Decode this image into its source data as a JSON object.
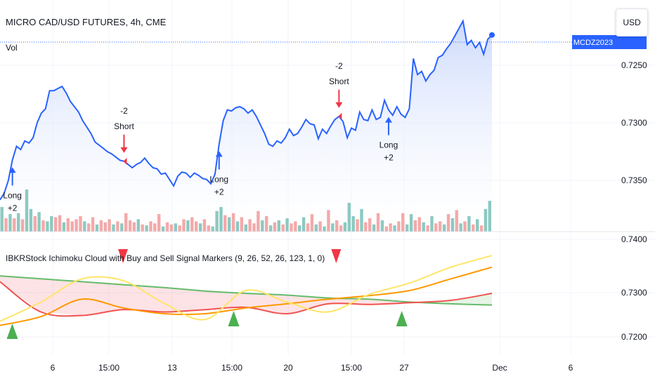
{
  "header": {
    "symbol_title": "MICRO CAD/USD FUTURES, 4h, CME",
    "volume_label": "Vol",
    "currency_button": "USD",
    "price_tag": "MCDZ2023"
  },
  "indicator": {
    "title": "IBKRStock Ichimoku Cloud with Buy and Sell Signal Markers (9, 26, 52, 26, 123, 1, 0)"
  },
  "colors": {
    "price_line": "#2962ff",
    "area_top": "#c7d6fb",
    "vol_up": "#8cc9c1",
    "vol_down": "#f4a9a9",
    "long_arrow": "#2962ff",
    "short_arrow": "#f23645",
    "ichi_green": "#4caf50",
    "ichi_red": "#f23645",
    "ichi_orange": "#ff9800",
    "ichi_yellow": "#ffeb3b",
    "grid": "#f0f3fa"
  },
  "chart_data": [
    {
      "type": "line",
      "title": "MICRO CAD/USD FUTURES, 4h, CME",
      "ylim": [
        0.7215,
        0.7392
      ],
      "y_ticks": [
        "0.7250",
        "0.7300",
        "0.7350"
      ],
      "x_ticks": [
        "6",
        "15:00",
        "13",
        "15:00",
        "20",
        "15:00",
        "27",
        "Dec",
        "6"
      ],
      "series": [
        {
          "values": [
            0.7225,
            0.7231,
            0.7243,
            0.7262,
            0.7275,
            0.7272,
            0.728,
            0.7278,
            0.7283,
            0.7297,
            0.7306,
            0.731,
            0.7327,
            0.7327,
            0.7329,
            0.7331,
            0.7325,
            0.7317,
            0.7312,
            0.7307,
            0.7299,
            0.7293,
            0.7287,
            0.7279,
            0.7276,
            0.7273,
            0.727,
            0.7268,
            0.7265,
            0.7262,
            0.7261,
            0.7258,
            0.7255,
            0.7258,
            0.726,
            0.7264,
            0.7259,
            0.7255,
            0.7254,
            0.7249,
            0.725,
            0.7244,
            0.7238,
            0.7247,
            0.7251,
            0.725,
            0.7246,
            0.725,
            0.7248,
            0.7245,
            0.7244,
            0.724,
            0.7249,
            0.7277,
            0.7299,
            0.7309,
            0.7308,
            0.7311,
            0.7312,
            0.731,
            0.7306,
            0.7309,
            0.7303,
            0.7295,
            0.7287,
            0.7277,
            0.7275,
            0.728,
            0.7278,
            0.7283,
            0.7291,
            0.7285,
            0.7287,
            0.7293,
            0.73,
            0.7296,
            0.7295,
            0.7282,
            0.7291,
            0.7287,
            0.7294,
            0.73,
            0.7303,
            0.7298,
            0.7283,
            0.7292,
            0.729,
            0.7307,
            0.73,
            0.7299,
            0.7309,
            0.73,
            0.7302,
            0.7318,
            0.7309,
            0.7304,
            0.7312,
            0.7305,
            0.7302,
            0.731,
            0.7357,
            0.7342,
            0.7345,
            0.7336,
            0.7342,
            0.7346,
            0.7358,
            0.736,
            0.7366,
            0.7371,
            0.7378,
            0.7385,
            0.7392,
            0.737,
            0.7374,
            0.7367,
            0.7372,
            0.7361,
            0.7375,
            0.7379
          ]
        }
      ],
      "volume": [
        {
          "v": 48,
          "up": true
        },
        {
          "v": 26,
          "up": false
        },
        {
          "v": 34,
          "up": true
        },
        {
          "v": 26,
          "up": false
        },
        {
          "v": 36,
          "up": true
        },
        {
          "v": 24,
          "up": false
        },
        {
          "v": 82,
          "up": true
        },
        {
          "v": 44,
          "up": true
        },
        {
          "v": 30,
          "up": false
        },
        {
          "v": 38,
          "up": true
        },
        {
          "v": 22,
          "up": false
        },
        {
          "v": 20,
          "up": true
        },
        {
          "v": 30,
          "up": true
        },
        {
          "v": 28,
          "up": false
        },
        {
          "v": 32,
          "up": false
        },
        {
          "v": 18,
          "up": true
        },
        {
          "v": 26,
          "up": false
        },
        {
          "v": 20,
          "up": false
        },
        {
          "v": 24,
          "up": false
        },
        {
          "v": 30,
          "up": false
        },
        {
          "v": 20,
          "up": true
        },
        {
          "v": 16,
          "up": false
        },
        {
          "v": 28,
          "up": false
        },
        {
          "v": 14,
          "up": true
        },
        {
          "v": 22,
          "up": false
        },
        {
          "v": 18,
          "up": false
        },
        {
          "v": 24,
          "up": false
        },
        {
          "v": 14,
          "up": true
        },
        {
          "v": 20,
          "up": false
        },
        {
          "v": 16,
          "up": true
        },
        {
          "v": 36,
          "up": false
        },
        {
          "v": 22,
          "up": false
        },
        {
          "v": 18,
          "up": false
        },
        {
          "v": 24,
          "up": true
        },
        {
          "v": 14,
          "up": false
        },
        {
          "v": 12,
          "up": true
        },
        {
          "v": 20,
          "up": false
        },
        {
          "v": 16,
          "up": false
        },
        {
          "v": 34,
          "up": false
        },
        {
          "v": 10,
          "up": true
        },
        {
          "v": 18,
          "up": false
        },
        {
          "v": 14,
          "up": false
        },
        {
          "v": 16,
          "up": true
        },
        {
          "v": 12,
          "up": false
        },
        {
          "v": 24,
          "up": false
        },
        {
          "v": 22,
          "up": true
        },
        {
          "v": 28,
          "up": false
        },
        {
          "v": 20,
          "up": false
        },
        {
          "v": 16,
          "up": true
        },
        {
          "v": 24,
          "up": false
        },
        {
          "v": 12,
          "up": false
        },
        {
          "v": 10,
          "up": true
        },
        {
          "v": 40,
          "up": true
        },
        {
          "v": 48,
          "up": true
        },
        {
          "v": 32,
          "up": false
        },
        {
          "v": 28,
          "up": true
        },
        {
          "v": 36,
          "up": false
        },
        {
          "v": 20,
          "up": true
        },
        {
          "v": 28,
          "up": false
        },
        {
          "v": 14,
          "up": true
        },
        {
          "v": 24,
          "up": false
        },
        {
          "v": 16,
          "up": false
        },
        {
          "v": 40,
          "up": false
        },
        {
          "v": 22,
          "up": true
        },
        {
          "v": 30,
          "up": false
        },
        {
          "v": 12,
          "up": true
        },
        {
          "v": 18,
          "up": false
        },
        {
          "v": 22,
          "up": true
        },
        {
          "v": 14,
          "up": false
        },
        {
          "v": 26,
          "up": true
        },
        {
          "v": 16,
          "up": false
        },
        {
          "v": 20,
          "up": false
        },
        {
          "v": 12,
          "up": true
        },
        {
          "v": 28,
          "up": true
        },
        {
          "v": 16,
          "up": false
        },
        {
          "v": 34,
          "up": false
        },
        {
          "v": 14,
          "up": true
        },
        {
          "v": 20,
          "up": false
        },
        {
          "v": 10,
          "up": true
        },
        {
          "v": 42,
          "up": false
        },
        {
          "v": 16,
          "up": true
        },
        {
          "v": 22,
          "up": false
        },
        {
          "v": 12,
          "up": false
        },
        {
          "v": 18,
          "up": true
        },
        {
          "v": 56,
          "up": true
        },
        {
          "v": 30,
          "up": true
        },
        {
          "v": 24,
          "up": false
        },
        {
          "v": 44,
          "up": true
        },
        {
          "v": 18,
          "up": false
        },
        {
          "v": 26,
          "up": false
        },
        {
          "v": 14,
          "up": true
        },
        {
          "v": 36,
          "up": false
        },
        {
          "v": 22,
          "up": true
        },
        {
          "v": 10,
          "up": false
        },
        {
          "v": 16,
          "up": false
        },
        {
          "v": 12,
          "up": true
        },
        {
          "v": 20,
          "up": false
        },
        {
          "v": 36,
          "up": false
        },
        {
          "v": 14,
          "up": true
        },
        {
          "v": 34,
          "up": true
        },
        {
          "v": 22,
          "up": false
        },
        {
          "v": 28,
          "up": false
        },
        {
          "v": 18,
          "up": true
        },
        {
          "v": 12,
          "up": false
        },
        {
          "v": 30,
          "up": true
        },
        {
          "v": 16,
          "up": false
        },
        {
          "v": 20,
          "up": false
        },
        {
          "v": 14,
          "up": true
        },
        {
          "v": 34,
          "up": false
        },
        {
          "v": 26,
          "up": true
        },
        {
          "v": 42,
          "up": false
        },
        {
          "v": 16,
          "up": true
        },
        {
          "v": 20,
          "up": false
        },
        {
          "v": 30,
          "up": true
        },
        {
          "v": 14,
          "up": false
        },
        {
          "v": 24,
          "up": true
        },
        {
          "v": 12,
          "up": false
        },
        {
          "v": 44,
          "up": true
        },
        {
          "v": 60,
          "up": true
        }
      ],
      "signals": [
        {
          "index": 3,
          "kind": "long",
          "lines": [
            "Long",
            "+2"
          ]
        },
        {
          "index": 30,
          "kind": "short",
          "lines": [
            "-2",
            "Short"
          ]
        },
        {
          "index": 53,
          "kind": "long",
          "lines": [
            "Long",
            "+2"
          ]
        },
        {
          "index": 82,
          "kind": "short",
          "lines": [
            "-2",
            "Short"
          ]
        },
        {
          "index": 94,
          "kind": "long",
          "lines": [
            "Long",
            "+2"
          ]
        }
      ]
    },
    {
      "type": "line",
      "title": "IBKRStock Ichimoku Cloud with Buy and Sell Signal Markers (9, 26, 52, 26, 123, 1, 0)",
      "ylim": [
        0.7195,
        0.7405
      ],
      "y_ticks": [
        "0.7400",
        "0.7300",
        "0.7200"
      ],
      "x": [
        0,
        10,
        20,
        30,
        40,
        50,
        60,
        70,
        80,
        90,
        100,
        110,
        120
      ],
      "series": [
        {
          "values": [
            0.733,
            0.7325,
            0.732,
            0.7315,
            0.731,
            0.7304,
            0.73,
            0.7297,
            0.7292,
            0.729,
            0.7285,
            0.7282,
            0.728
          ],
          "color": "#66bb6a"
        },
        {
          "values": [
            0.732,
            0.7268,
            0.7262,
            0.7272,
            0.7268,
            0.7272,
            0.7276,
            0.7265,
            0.7282,
            0.7281,
            0.7284,
            0.7288,
            0.73
          ],
          "color": "#ef5350"
        },
        {
          "values": [
            0.7245,
            0.726,
            0.729,
            0.7275,
            0.7265,
            0.7265,
            0.7275,
            0.7282,
            0.729,
            0.7296,
            0.7305,
            0.7325,
            0.7345
          ],
          "color": "#ff9800"
        },
        {
          "values": [
            0.7252,
            0.7285,
            0.7325,
            0.7322,
            0.7283,
            0.7255,
            0.7305,
            0.7285,
            0.7268,
            0.7298,
            0.7318,
            0.7345,
            0.7365
          ],
          "color": "#ffe566"
        }
      ],
      "signals": [
        {
          "x": 3,
          "kind": "up"
        },
        {
          "x": 30,
          "kind": "down"
        },
        {
          "x": 57,
          "kind": "up"
        },
        {
          "x": 82,
          "kind": "down"
        },
        {
          "x": 98,
          "kind": "up"
        }
      ]
    }
  ]
}
